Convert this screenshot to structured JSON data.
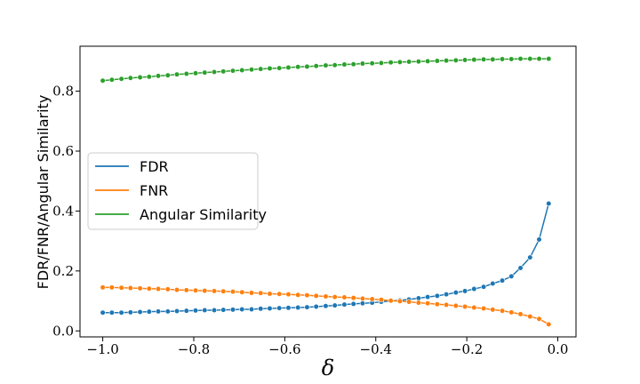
{
  "chart_data": {
    "type": "line",
    "title": "",
    "xlabel": "δ",
    "ylabel": "FDR/FNR/Angular Similarity",
    "xlim": [
      -1.05,
      0.04
    ],
    "ylim": [
      -0.02,
      0.95
    ],
    "xticks": [
      -1.0,
      -0.8,
      -0.6,
      -0.4,
      -0.2,
      0.0
    ],
    "xtick_labels": [
      "−1.0",
      "−0.8",
      "−0.6",
      "−0.4",
      "−0.2",
      "0.0"
    ],
    "yticks": [
      0.0,
      0.2,
      0.4,
      0.6,
      0.8
    ],
    "ytick_labels": [
      "0.0",
      "0.2",
      "0.4",
      "0.6",
      "0.8"
    ],
    "grid": false,
    "legend_position": "center-left",
    "x": [
      -1.0,
      -0.98,
      -0.959,
      -0.939,
      -0.918,
      -0.898,
      -0.878,
      -0.857,
      -0.837,
      -0.816,
      -0.796,
      -0.776,
      -0.755,
      -0.735,
      -0.714,
      -0.694,
      -0.673,
      -0.653,
      -0.633,
      -0.612,
      -0.592,
      -0.571,
      -0.551,
      -0.531,
      -0.51,
      -0.49,
      -0.469,
      -0.449,
      -0.429,
      -0.408,
      -0.388,
      -0.367,
      -0.347,
      -0.327,
      -0.306,
      -0.286,
      -0.265,
      -0.245,
      -0.224,
      -0.204,
      -0.184,
      -0.163,
      -0.143,
      -0.122,
      -0.102,
      -0.082,
      -0.061,
      -0.041,
      -0.02
    ],
    "series": [
      {
        "name": "FDR",
        "color": "#1f77b4",
        "values": [
          0.061,
          0.061,
          0.061,
          0.062,
          0.063,
          0.064,
          0.065,
          0.065,
          0.066,
          0.067,
          0.068,
          0.069,
          0.069,
          0.07,
          0.071,
          0.072,
          0.072,
          0.074,
          0.075,
          0.076,
          0.077,
          0.078,
          0.079,
          0.081,
          0.083,
          0.085,
          0.088,
          0.09,
          0.092,
          0.094,
          0.097,
          0.1,
          0.102,
          0.105,
          0.109,
          0.113,
          0.117,
          0.122,
          0.128,
          0.133,
          0.14,
          0.147,
          0.158,
          0.168,
          0.182,
          0.21,
          0.245,
          0.305,
          0.425
        ]
      },
      {
        "name": "FNR",
        "color": "#ff7f0e",
        "values": [
          0.145,
          0.145,
          0.144,
          0.143,
          0.142,
          0.141,
          0.14,
          0.139,
          0.137,
          0.136,
          0.135,
          0.134,
          0.133,
          0.132,
          0.131,
          0.129,
          0.127,
          0.126,
          0.124,
          0.123,
          0.122,
          0.12,
          0.119,
          0.117,
          0.115,
          0.113,
          0.112,
          0.11,
          0.108,
          0.106,
          0.104,
          0.101,
          0.099,
          0.097,
          0.094,
          0.092,
          0.089,
          0.087,
          0.084,
          0.081,
          0.078,
          0.075,
          0.071,
          0.067,
          0.062,
          0.056,
          0.048,
          0.04,
          0.022
        ]
      },
      {
        "name": "Angular Similarity",
        "color": "#2ca02c",
        "values": [
          0.835,
          0.838,
          0.841,
          0.844,
          0.846,
          0.848,
          0.851,
          0.853,
          0.856,
          0.858,
          0.86,
          0.862,
          0.864,
          0.866,
          0.868,
          0.87,
          0.872,
          0.874,
          0.876,
          0.877,
          0.879,
          0.881,
          0.882,
          0.884,
          0.886,
          0.887,
          0.889,
          0.89,
          0.892,
          0.893,
          0.894,
          0.896,
          0.897,
          0.898,
          0.899,
          0.9,
          0.901,
          0.902,
          0.903,
          0.904,
          0.905,
          0.906,
          0.906,
          0.907,
          0.907,
          0.908,
          0.908,
          0.908,
          0.908
        ]
      }
    ]
  }
}
